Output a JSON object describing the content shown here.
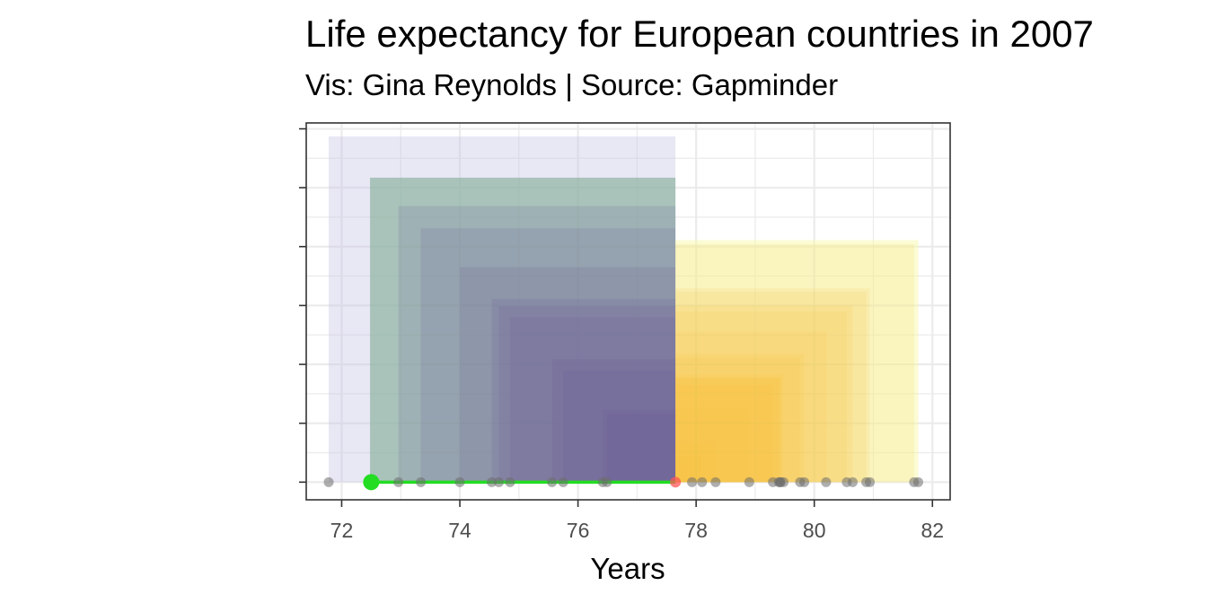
{
  "chart_data": {
    "type": "scatter",
    "title": "Life expectancy for European countries in 2007",
    "subtitle": "Vis: Gina Reynolds | Source: Gapminder",
    "xlabel": "Years",
    "ylabel": "",
    "xlim": [
      71.4,
      82.3
    ],
    "ylim": [
      -0.3,
      6.1
    ],
    "x_ticks": [
      72,
      74,
      76,
      78,
      80,
      82
    ],
    "grid": true,
    "mean": 77.65,
    "highlight_country_life_exp": 72.5,
    "deviation_squares": {
      "below_mean_fill": "#6c5a96",
      "below_mean_largest_fill": "#c5c2e3",
      "below_mean_second_fill": "#7eac93",
      "above_mean_fill": "#f4c33a",
      "above_mean_largest_fill": "#f8f9a7"
    },
    "colors": {
      "point": "#6e6e6e",
      "highlight_point": "#22dd22",
      "mean_point": "#ff5555",
      "segment": "#22dd22"
    },
    "values": [
      71.78,
      72.48,
      72.96,
      73.34,
      74.0,
      74.54,
      74.66,
      74.85,
      75.56,
      75.75,
      76.42,
      76.49,
      77.93,
      78.1,
      78.33,
      78.9,
      79.3,
      79.4,
      79.42,
      79.43,
      79.48,
      79.76,
      79.83,
      80.2,
      80.55,
      80.65,
      80.88,
      80.94,
      81.69,
      81.76
    ]
  }
}
